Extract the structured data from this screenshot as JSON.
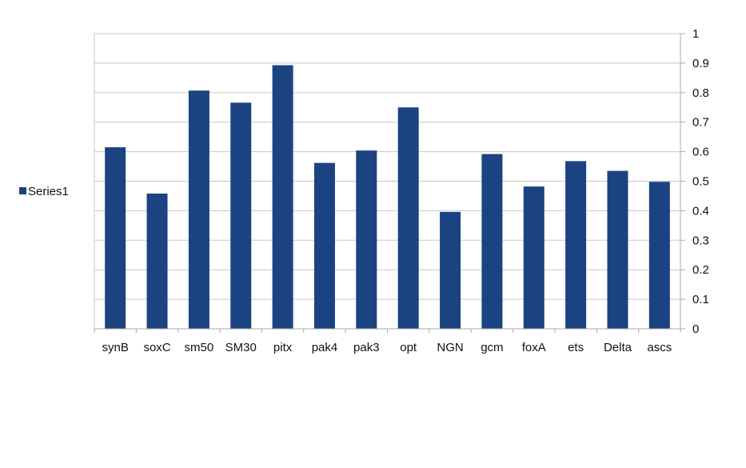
{
  "chart_data": {
    "type": "bar",
    "title": "",
    "xlabel": "",
    "ylabel": "",
    "categories": [
      "synB",
      "soxC",
      "sm50",
      "SM30",
      "pitx",
      "pak4",
      "pak3",
      "opt",
      "NGN",
      "gcm",
      "foxA",
      "ets",
      "Delta",
      "ascs"
    ],
    "series": [
      {
        "name": "Series1",
        "values": [
          0.615,
          0.458,
          0.807,
          0.766,
          0.893,
          0.562,
          0.604,
          0.75,
          0.396,
          0.592,
          0.482,
          0.568,
          0.535,
          0.498
        ]
      }
    ],
    "ylim": [
      0,
      1
    ],
    "yticks": [
      "0",
      "0.1",
      "0.2",
      "0.3",
      "0.4",
      "0.5",
      "0.6",
      "0.7",
      "0.8",
      "0.9",
      "1"
    ],
    "y_axis_side": "right",
    "grid": true,
    "legend_position": "left",
    "colors": {
      "bar": "#1b4382",
      "grid": "#c8c8c8",
      "axis": "#a8a8a8",
      "text": "#111111"
    }
  }
}
